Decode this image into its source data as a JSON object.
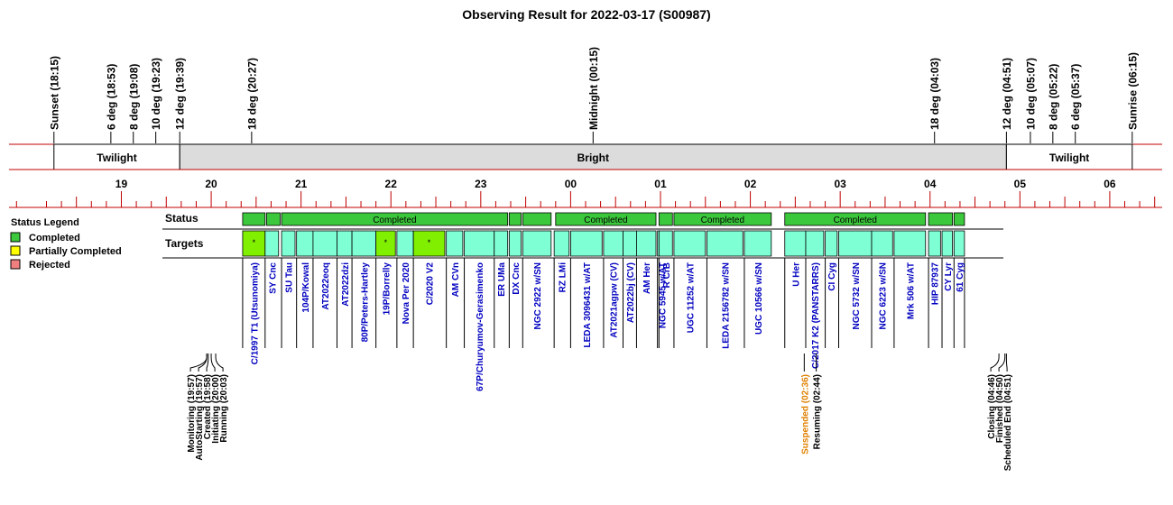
{
  "title": "Observing Result for 2022-03-17 (S00987)",
  "colors": {
    "twilight": "#ffffff",
    "bright": "#dcdcdc",
    "completed": "#3cc83c",
    "partial": "#ffff00",
    "rejected": "#f08080",
    "target_fill": "#7fffd4",
    "highlight_fill": "#80f000",
    "target_text": "#0000c0",
    "suspend_text": "#e08000",
    "ruler_line": "#c00000"
  },
  "timeline": {
    "start_min": 1065,
    "end_min": 1835,
    "markers": [
      {
        "label": "Sunset (18:15)",
        "t": 1095
      },
      {
        "label": "6 deg (18:53)",
        "t": 1133
      },
      {
        "label": "8 deg (19:08)",
        "t": 1148
      },
      {
        "label": "10 deg (19:23)",
        "t": 1163
      },
      {
        "label": "12 deg (19:39)",
        "t": 1179
      },
      {
        "label": "18 deg (20:27)",
        "t": 1227
      },
      {
        "label": "Midnight (00:15)",
        "t": 1455
      },
      {
        "label": "18 deg (04:03)",
        "t": 1683
      },
      {
        "label": "12 deg (04:51)",
        "t": 1731
      },
      {
        "label": "10 deg (05:07)",
        "t": 1747
      },
      {
        "label": "8 deg (05:22)",
        "t": 1762
      },
      {
        "label": "6 deg (05:37)",
        "t": 1777
      },
      {
        "label": "Sunrise (06:15)",
        "t": 1815
      }
    ],
    "bands": [
      {
        "label": "Twilight",
        "start": 1095,
        "end": 1179,
        "kind": "twilight"
      },
      {
        "label": "Bright",
        "start": 1179,
        "end": 1731,
        "kind": "bright"
      },
      {
        "label": "Twilight",
        "start": 1731,
        "end": 1815,
        "kind": "twilight"
      }
    ],
    "hours": [
      {
        "label": "19",
        "t": 1140
      },
      {
        "label": "20",
        "t": 1200
      },
      {
        "label": "21",
        "t": 1260
      },
      {
        "label": "22",
        "t": 1320
      },
      {
        "label": "23",
        "t": 1380
      },
      {
        "label": "00",
        "t": 1440
      },
      {
        "label": "01",
        "t": 1500
      },
      {
        "label": "02",
        "t": 1560
      },
      {
        "label": "03",
        "t": 1620
      },
      {
        "label": "04",
        "t": 1680
      },
      {
        "label": "05",
        "t": 1740
      },
      {
        "label": "06",
        "t": 1800
      }
    ]
  },
  "legend": {
    "title": "Status Legend",
    "items": [
      {
        "label": "Completed",
        "color": "#3cc83c"
      },
      {
        "label": "Partially Completed",
        "color": "#ffff00"
      },
      {
        "label": "Rejected",
        "color": "#f08080"
      }
    ]
  },
  "row_labels": {
    "status": "Status",
    "targets": "Targets"
  },
  "status_segments": [
    {
      "start": 1221,
      "end": 1236,
      "label": ""
    },
    {
      "start": 1237,
      "end": 1246,
      "label": ""
    },
    {
      "start": 1247,
      "end": 1398,
      "label": "Completed"
    },
    {
      "start": 1399,
      "end": 1407,
      "label": ""
    },
    {
      "start": 1408,
      "end": 1427,
      "label": ""
    },
    {
      "start": 1430,
      "end": 1497,
      "label": "Completed"
    },
    {
      "start": 1499,
      "end": 1508,
      "label": ""
    },
    {
      "start": 1509,
      "end": 1574,
      "label": "Completed"
    },
    {
      "start": 1583,
      "end": 1677,
      "label": "Completed"
    },
    {
      "start": 1679,
      "end": 1695,
      "label": ""
    },
    {
      "start": 1696,
      "end": 1703,
      "label": ""
    }
  ],
  "targets": [
    {
      "name": "C/1997 T1 (Utsunomiya)",
      "start": 1221,
      "end": 1236,
      "marked": true
    },
    {
      "name": "SY Cnc",
      "start": 1236,
      "end": 1245
    },
    {
      "name": "SU Tau",
      "start": 1247,
      "end": 1256
    },
    {
      "name": "104P/Kowal",
      "start": 1257,
      "end": 1268
    },
    {
      "name": "AT2022eoq",
      "start": 1268,
      "end": 1284
    },
    {
      "name": "AT2022dzi",
      "start": 1284,
      "end": 1294
    },
    {
      "name": "80P/Peters-Hartley",
      "start": 1294,
      "end": 1310
    },
    {
      "name": "19P/Borrelly",
      "start": 1310,
      "end": 1323,
      "marked": true
    },
    {
      "name": "Nova Per 2020",
      "start": 1324,
      "end": 1335
    },
    {
      "name": "C/2020 V2",
      "start": 1335,
      "end": 1356,
      "marked": true
    },
    {
      "name": "AM CVn",
      "start": 1357,
      "end": 1368
    },
    {
      "name": "67P/Churyumov-Gerasimenko",
      "start": 1369,
      "end": 1389
    },
    {
      "name": "ER UMa",
      "start": 1389,
      "end": 1398
    },
    {
      "name": "DX Cnc",
      "start": 1399,
      "end": 1407
    },
    {
      "name": "NGC 2922 w/SN",
      "start": 1408,
      "end": 1427
    },
    {
      "name": "RZ LMi",
      "start": 1429,
      "end": 1439
    },
    {
      "name": "LEDA 3096431 w/AT",
      "start": 1440,
      "end": 1461
    },
    {
      "name": "AT2021agpw (CV)",
      "start": 1462,
      "end": 1475
    },
    {
      "name": "AT2022bj (CV)",
      "start": 1475,
      "end": 1484
    },
    {
      "name": "AM Her",
      "start": 1484,
      "end": 1497
    },
    {
      "name": "NGC 5945 w/AT",
      "start": 1498,
      "end": 1498
    },
    {
      "name": "R CrB",
      "start": 1499,
      "end": 1508
    },
    {
      "name": "UGC 11252 w/AT",
      "start": 1509,
      "end": 1530
    },
    {
      "name": "LEDA 2156782 w/SN",
      "start": 1531,
      "end": 1555
    },
    {
      "name": "UGC 10566 w/SN",
      "start": 1556,
      "end": 1574
    },
    {
      "name": "U Her",
      "start": 1583,
      "end": 1597
    },
    {
      "name": "C/2017 K2 (PANSTARRS)",
      "start": 1597,
      "end": 1609
    },
    {
      "name": "CI Cyg",
      "start": 1610,
      "end": 1618
    },
    {
      "name": "NGC 5732 w/SN",
      "start": 1619,
      "end": 1641
    },
    {
      "name": "NGC 6223 w/SN",
      "start": 1641,
      "end": 1655
    },
    {
      "name": "Mrk 506 w/AT",
      "start": 1656,
      "end": 1677
    },
    {
      "name": "HIP 87937",
      "start": 1679,
      "end": 1687
    },
    {
      "name": "CY Lyr",
      "start": 1688,
      "end": 1695
    },
    {
      "name": "61 Cyg",
      "start": 1696,
      "end": 1703
    }
  ],
  "events": [
    {
      "label": "Monitoring (19:57)",
      "t": 1197,
      "color": "#000000"
    },
    {
      "label": "AutoStarting (19:57)",
      "t": 1197,
      "color": "#000000"
    },
    {
      "label": "Created (19:58)",
      "t": 1198,
      "color": "#000000"
    },
    {
      "label": "Initiating (20:00)",
      "t": 1200,
      "color": "#000000"
    },
    {
      "label": "Running (20:03)",
      "t": 1203,
      "color": "#000000"
    },
    {
      "label": "Suspended (02:36)",
      "t": 1596,
      "color": "#e08000"
    },
    {
      "label": "Resuming (02:44)",
      "t": 1604,
      "color": "#000000"
    },
    {
      "label": "Closing (04:46)",
      "t": 1726,
      "color": "#000000"
    },
    {
      "label": "Finished (04:50)",
      "t": 1730,
      "color": "#000000"
    },
    {
      "label": "Scheduled End (04:51)",
      "t": 1731,
      "color": "#000000"
    }
  ]
}
